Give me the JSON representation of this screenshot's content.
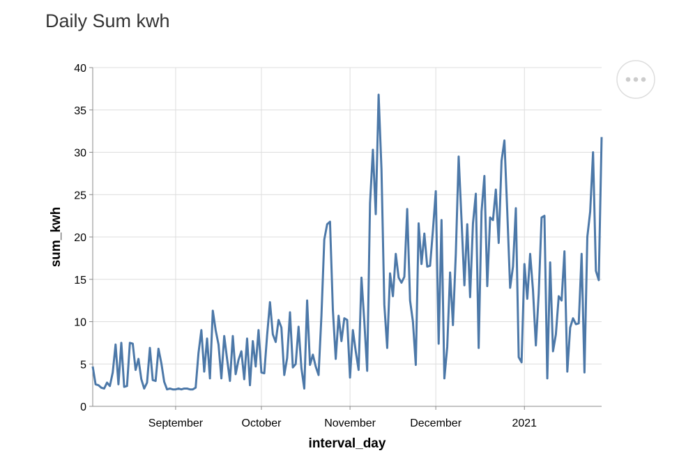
{
  "chart_data": {
    "type": "line",
    "title": "Daily Sum kwh",
    "x_label": "interval_day",
    "y_label": "sum_kwh",
    "color": "#4c78a8",
    "grid": true,
    "xlim": [
      "2020-08-03",
      "2021-01-28"
    ],
    "xticks": [
      {
        "value": "2020-09-01",
        "label": "September"
      },
      {
        "value": "2020-10-01",
        "label": "October"
      },
      {
        "value": "2020-11-01",
        "label": "November"
      },
      {
        "value": "2020-12-01",
        "label": "December"
      },
      {
        "value": "2021-01-01",
        "label": "2021"
      }
    ],
    "ylim": [
      0,
      40
    ],
    "yticks": [
      0,
      5,
      10,
      15,
      20,
      25,
      30,
      35,
      40
    ],
    "x": [
      "2020-08-03",
      "2020-08-04",
      "2020-08-05",
      "2020-08-06",
      "2020-08-07",
      "2020-08-08",
      "2020-08-09",
      "2020-08-10",
      "2020-08-11",
      "2020-08-12",
      "2020-08-13",
      "2020-08-14",
      "2020-08-15",
      "2020-08-16",
      "2020-08-17",
      "2020-08-18",
      "2020-08-19",
      "2020-08-20",
      "2020-08-21",
      "2020-08-22",
      "2020-08-23",
      "2020-08-24",
      "2020-08-25",
      "2020-08-26",
      "2020-08-27",
      "2020-08-28",
      "2020-08-29",
      "2020-08-30",
      "2020-08-31",
      "2020-09-01",
      "2020-09-02",
      "2020-09-03",
      "2020-09-04",
      "2020-09-05",
      "2020-09-06",
      "2020-09-07",
      "2020-09-08",
      "2020-09-09",
      "2020-09-10",
      "2020-09-11",
      "2020-09-12",
      "2020-09-13",
      "2020-09-14",
      "2020-09-15",
      "2020-09-16",
      "2020-09-17",
      "2020-09-18",
      "2020-09-19",
      "2020-09-20",
      "2020-09-21",
      "2020-09-22",
      "2020-09-23",
      "2020-09-24",
      "2020-09-25",
      "2020-09-26",
      "2020-09-27",
      "2020-09-28",
      "2020-09-29",
      "2020-09-30",
      "2020-10-01",
      "2020-10-02",
      "2020-10-03",
      "2020-10-04",
      "2020-10-05",
      "2020-10-06",
      "2020-10-07",
      "2020-10-08",
      "2020-10-09",
      "2020-10-10",
      "2020-10-11",
      "2020-10-12",
      "2020-10-13",
      "2020-10-14",
      "2020-10-15",
      "2020-10-16",
      "2020-10-17",
      "2020-10-18",
      "2020-10-19",
      "2020-10-20",
      "2020-10-21",
      "2020-10-22",
      "2020-10-23",
      "2020-10-24",
      "2020-10-25",
      "2020-10-26",
      "2020-10-27",
      "2020-10-28",
      "2020-10-29",
      "2020-10-30",
      "2020-10-31",
      "2020-11-01",
      "2020-11-02",
      "2020-11-03",
      "2020-11-04",
      "2020-11-05",
      "2020-11-06",
      "2020-11-07",
      "2020-11-08",
      "2020-11-09",
      "2020-11-10",
      "2020-11-11",
      "2020-11-12",
      "2020-11-13",
      "2020-11-14",
      "2020-11-15",
      "2020-11-16",
      "2020-11-17",
      "2020-11-18",
      "2020-11-19",
      "2020-11-20",
      "2020-11-21",
      "2020-11-22",
      "2020-11-23",
      "2020-11-24",
      "2020-11-25",
      "2020-11-26",
      "2020-11-27",
      "2020-11-28",
      "2020-11-29",
      "2020-11-30",
      "2020-12-01",
      "2020-12-02",
      "2020-12-03",
      "2020-12-04",
      "2020-12-05",
      "2020-12-06",
      "2020-12-07",
      "2020-12-08",
      "2020-12-09",
      "2020-12-10",
      "2020-12-11",
      "2020-12-12",
      "2020-12-13",
      "2020-12-14",
      "2020-12-15",
      "2020-12-16",
      "2020-12-17",
      "2020-12-18",
      "2020-12-19",
      "2020-12-20",
      "2020-12-21",
      "2020-12-22",
      "2020-12-23",
      "2020-12-24",
      "2020-12-25",
      "2020-12-26",
      "2020-12-27",
      "2020-12-28",
      "2020-12-29",
      "2020-12-30",
      "2020-12-31",
      "2021-01-01",
      "2021-01-02",
      "2021-01-03",
      "2021-01-04",
      "2021-01-05",
      "2021-01-06",
      "2021-01-07",
      "2021-01-08",
      "2021-01-09",
      "2021-01-10",
      "2021-01-11",
      "2021-01-12",
      "2021-01-13",
      "2021-01-14",
      "2021-01-15",
      "2021-01-16",
      "2021-01-17",
      "2021-01-18",
      "2021-01-19",
      "2021-01-20",
      "2021-01-21",
      "2021-01-22",
      "2021-01-23",
      "2021-01-24",
      "2021-01-25",
      "2021-01-26",
      "2021-01-27",
      "2021-01-28"
    ],
    "values": [
      4.7,
      2.6,
      2.5,
      2.2,
      2.1,
      2.8,
      2.4,
      4.0,
      7.3,
      2.6,
      7.5,
      2.3,
      2.4,
      7.5,
      7.4,
      4.3,
      5.6,
      3.2,
      2.1,
      2.8,
      6.9,
      3.1,
      3.0,
      6.8,
      5.1,
      2.9,
      2.0,
      2.1,
      2.0,
      2.0,
      2.1,
      2.0,
      2.1,
      2.1,
      2.0,
      2.0,
      2.2,
      6.3,
      9.0,
      4.1,
      8.0,
      3.3,
      11.3,
      9.0,
      7.3,
      3.3,
      8.3,
      5.6,
      3.0,
      8.3,
      3.8,
      5.5,
      6.5,
      3.2,
      8.0,
      2.5,
      7.7,
      4.7,
      9.0,
      4.0,
      3.9,
      8.4,
      12.3,
      8.5,
      7.6,
      10.2,
      9.3,
      3.7,
      5.7,
      11.1,
      4.6,
      5.0,
      9.4,
      4.5,
      2.1,
      12.5,
      4.9,
      6.1,
      4.7,
      3.7,
      10.7,
      19.7,
      21.5,
      21.8,
      11.4,
      5.6,
      10.7,
      7.7,
      10.4,
      10.2,
      3.4,
      9.0,
      6.5,
      4.3,
      15.2,
      10.0,
      4.2,
      24.0,
      30.3,
      22.7,
      36.8,
      28.0,
      12.0,
      6.9,
      15.7,
      13.0,
      18.0,
      15.2,
      14.6,
      15.3,
      23.3,
      12.5,
      10.0,
      4.9,
      21.6,
      16.8,
      20.4,
      16.5,
      16.6,
      20.8,
      25.4,
      7.4,
      22.0,
      3.3,
      7.0,
      15.8,
      9.6,
      18.0,
      29.5,
      22.0,
      14.3,
      21.5,
      12.9,
      21.6,
      25.1,
      6.9,
      23.0,
      27.2,
      14.2,
      22.3,
      22.0,
      25.6,
      19.3,
      29.0,
      31.4,
      23.0,
      14.0,
      16.5,
      23.4,
      5.8,
      5.2,
      16.8,
      12.7,
      18.0,
      13.7,
      7.2,
      13.3,
      22.3,
      22.5,
      3.3,
      17.0,
      6.5,
      8.5,
      13.0,
      12.5,
      18.3,
      4.1,
      9.3,
      10.4,
      9.7,
      9.8,
      18.0,
      4.0,
      20.0,
      23.0,
      30.0,
      16.0,
      14.9,
      31.8
    ]
  }
}
